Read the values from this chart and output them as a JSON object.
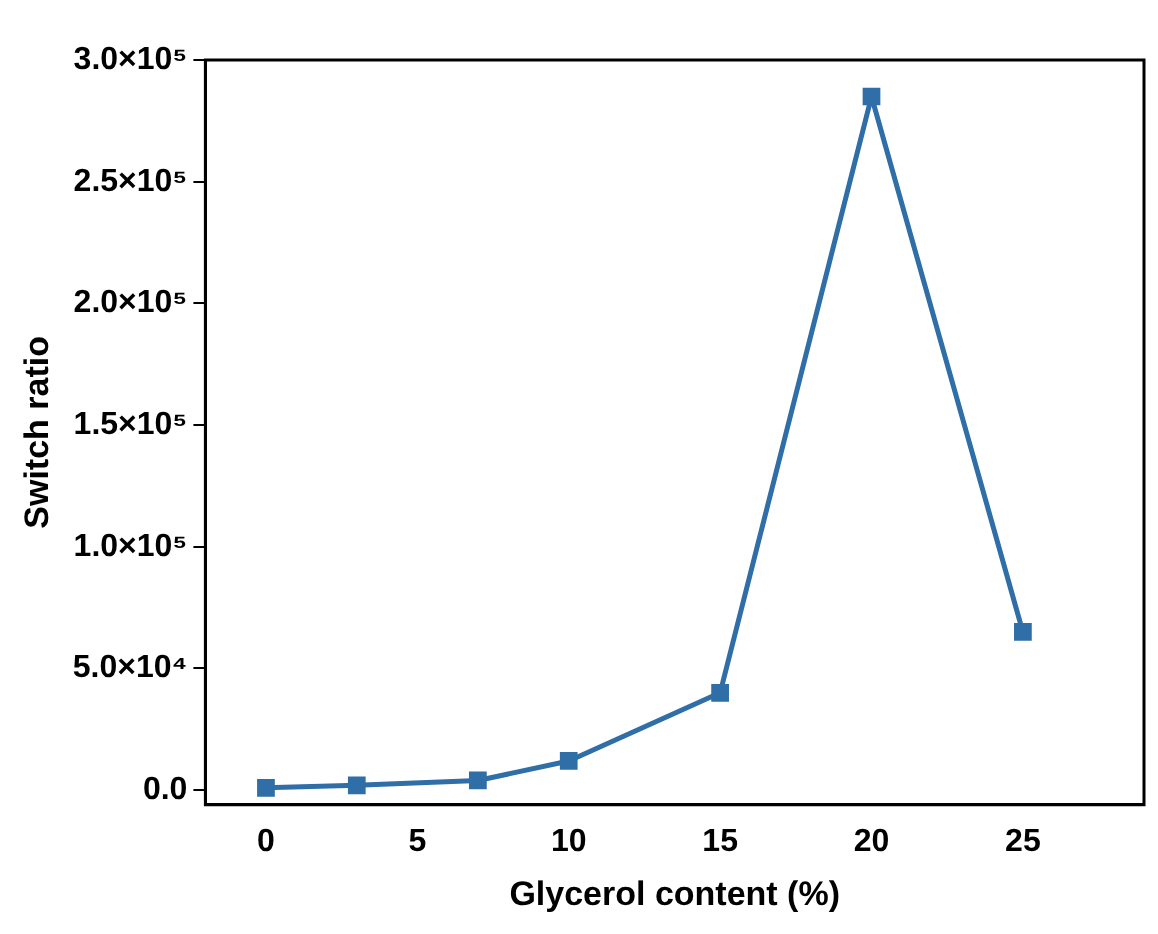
{
  "chart_data": {
    "type": "line",
    "xlabel": "Glycerol content (%)",
    "ylabel": "Switch ratio",
    "x": [
      0,
      3,
      7,
      10,
      15,
      20,
      25
    ],
    "series": [
      {
        "color": "#2f6ea6",
        "values": [
          1000,
          2000,
          4000,
          12000,
          40000,
          285000,
          65000
        ]
      }
    ],
    "xlim": [
      -2,
      29
    ],
    "xticks": [
      0,
      5,
      10,
      15,
      20,
      25
    ],
    "ylim": [
      -6000,
      300000
    ],
    "yticks": [
      {
        "value": 0,
        "label": "0.0"
      },
      {
        "value": 50000,
        "label": "5.0×10⁴"
      },
      {
        "value": 100000,
        "label": "1.0×10⁵"
      },
      {
        "value": 150000,
        "label": "1.5×10⁵"
      },
      {
        "value": 200000,
        "label": "2.0×10⁵"
      },
      {
        "value": 250000,
        "label": "2.5×10⁵"
      },
      {
        "value": 300000,
        "label": "3.0×10⁵"
      }
    ],
    "grid": false,
    "legend": false,
    "marker": "square",
    "line_style": "solid"
  }
}
